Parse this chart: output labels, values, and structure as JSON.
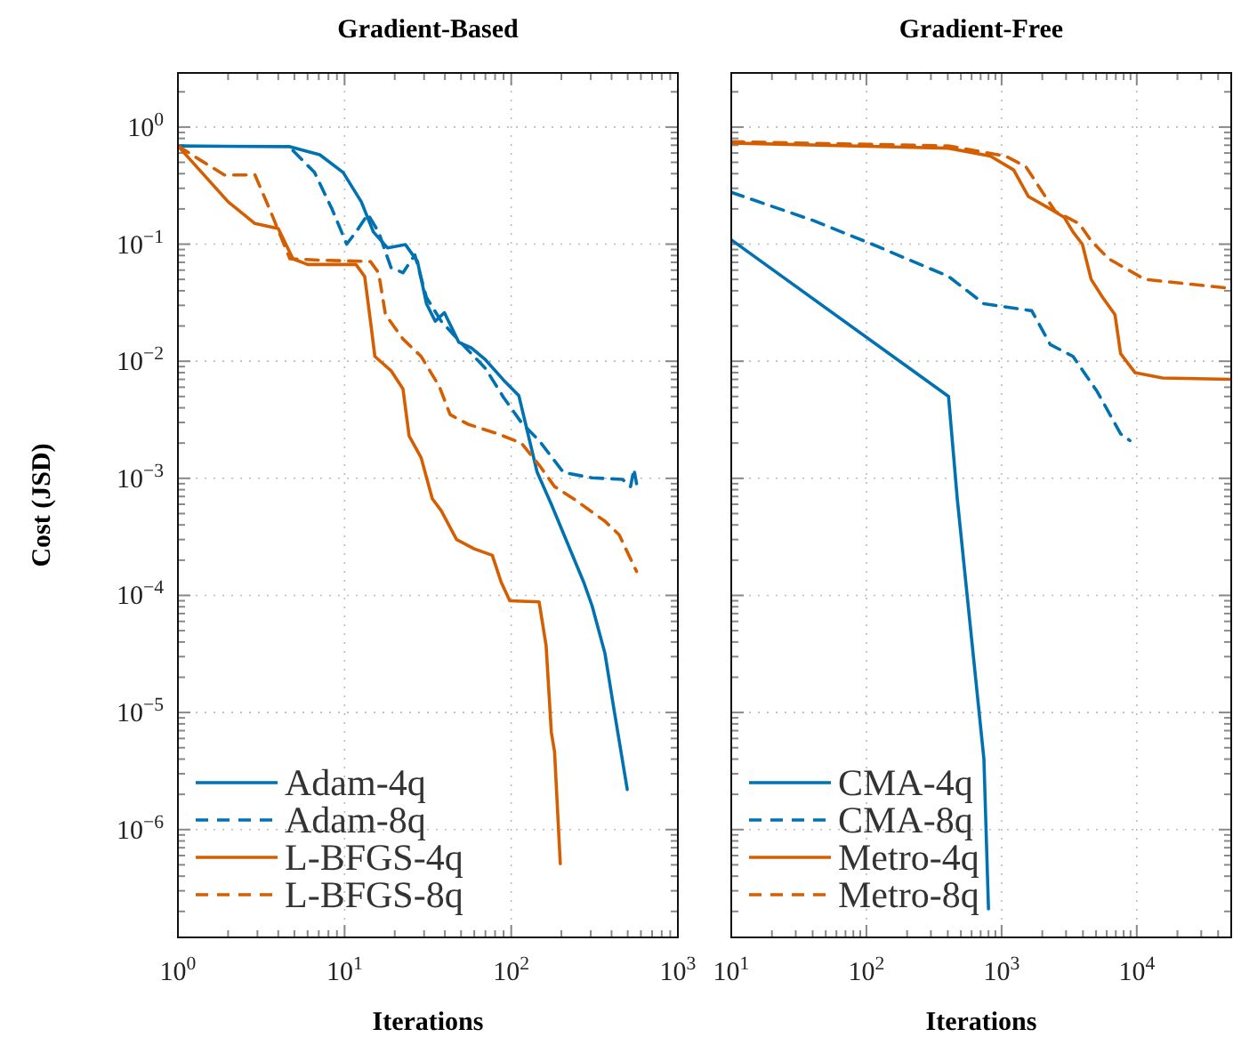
{
  "chart_data": [
    {
      "type": "line",
      "title": "Gradient-Based",
      "xlabel": "Iterations",
      "ylabel": "Cost (JSD)",
      "log": "xy",
      "grid": true,
      "legend": "bottom left",
      "xlim": [
        1,
        1000
      ],
      "ylim": [
        1.2e-07,
        2.9
      ],
      "xticks": [
        {
          "value": 1,
          "label": "10$^{0}$"
        },
        {
          "value": 10,
          "label": "10$^{1}$"
        },
        {
          "value": 100,
          "label": "10$^{2}$"
        },
        {
          "value": 1000,
          "label": "10$^{3}$"
        }
      ],
      "yticks": [
        {
          "value": 1e-06,
          "label": "10$^{−6}$"
        },
        {
          "value": 1e-05,
          "label": "10$^{−5}$"
        },
        {
          "value": 0.0001,
          "label": "10$^{−4}$"
        },
        {
          "value": 0.001,
          "label": "10$^{−3}$"
        },
        {
          "value": 0.01,
          "label": "10$^{−2}$"
        },
        {
          "value": 0.1,
          "label": "10$^{−1}$"
        },
        {
          "value": 1,
          "label": "10$^{0}$"
        }
      ],
      "series": [
        {
          "name": "Adam-4q",
          "color": "#0072b2",
          "line_style": "solid",
          "x": [
            1,
            4.7,
            7.1,
            9.8,
            12.6,
            14.9,
            18.1,
            23.2,
            27.4,
            31,
            35,
            39.7,
            48.5,
            57.6,
            70,
            90,
            111,
            126,
            143,
            174,
            272,
            306,
            365,
            412,
            497
          ],
          "values": [
            0.69,
            0.68,
            0.58,
            0.41,
            0.23,
            0.127,
            0.093,
            0.099,
            0.071,
            0.031,
            0.022,
            0.026,
            0.0145,
            0.013,
            0.0103,
            0.0069,
            0.0051,
            0.0024,
            0.00113,
            0.0006,
            0.00013,
            8.1e-05,
            3.2e-05,
            1.1e-05,
            2.2e-06
          ]
        },
        {
          "name": "Adam-8q",
          "color": "#0072b2",
          "line_style": "dashed",
          "x": [
            4.9,
            6.6,
            8.4,
            10.3,
            11.7,
            13.8,
            16,
            19,
            22.4,
            26.4,
            31,
            38,
            51,
            70,
            90,
            115,
            147,
            206,
            306,
            465,
            520,
            545,
            565
          ],
          "values": [
            0.63,
            0.41,
            0.2,
            0.1,
            0.127,
            0.18,
            0.127,
            0.063,
            0.057,
            0.081,
            0.035,
            0.022,
            0.0139,
            0.0087,
            0.0049,
            0.003,
            0.0021,
            0.00112,
            0.00101,
            0.00098,
            0.00085,
            0.0012,
            0.0009
          ]
        },
        {
          "name": "L-BFGS-4q",
          "color": "#d55e00",
          "line_style": "solid",
          "x": [
            1,
            2,
            2.9,
            4,
            4.9,
            6,
            11.7,
            13.2,
            14.3,
            15.2,
            19,
            22.4,
            24.4,
            28.8,
            33.6,
            38,
            47,
            60,
            77,
            87,
            98,
            147,
            162,
            174,
            182,
            197
          ],
          "values": [
            0.69,
            0.23,
            0.15,
            0.136,
            0.075,
            0.067,
            0.067,
            0.053,
            0.022,
            0.011,
            0.0083,
            0.0058,
            0.0023,
            0.0015,
            0.00067,
            0.00053,
            0.0003,
            0.00025,
            0.00022,
            0.00013,
            9e-05,
            8.8e-05,
            3.7e-05,
            6.8e-06,
            4.6e-06,
            5.1e-07
          ]
        },
        {
          "name": "L-BFGS-8q",
          "color": "#d55e00",
          "line_style": "dashed",
          "x": [
            1,
            1.4,
            1.9,
            2.9,
            3.6,
            4.7,
            7.1,
            14.3,
            16,
            17.6,
            22.4,
            28.8,
            37,
            43,
            55,
            83,
            115,
            147,
            182,
            240,
            365,
            444,
            565
          ],
          "values": [
            0.69,
            0.51,
            0.39,
            0.39,
            0.19,
            0.075,
            0.073,
            0.071,
            0.057,
            0.025,
            0.0155,
            0.011,
            0.0061,
            0.0035,
            0.0029,
            0.0024,
            0.002,
            0.0013,
            0.00085,
            0.00066,
            0.00043,
            0.00033,
            0.00016
          ]
        }
      ]
    },
    {
      "type": "line",
      "title": "Gradient-Free",
      "xlabel": "Iterations",
      "log": "xy",
      "grid": true,
      "legend": "bottom left",
      "tick_labels": "x",
      "xlim": [
        10,
        50000
      ],
      "ylim": [
        1.2e-07,
        2.9
      ],
      "xticks": [
        {
          "value": 10,
          "label": "10$^{1}$"
        },
        {
          "value": 100,
          "label": "10$^{2}$"
        },
        {
          "value": 1000,
          "label": "10$^{3}$"
        },
        {
          "value": 10000,
          "label": "10$^{4}$"
        }
      ],
      "yticks": [
        {
          "value": 1e-06,
          "label": null
        },
        {
          "value": 1e-05,
          "label": null
        },
        {
          "value": 0.0001,
          "label": null
        },
        {
          "value": 0.001,
          "label": null
        },
        {
          "value": 0.01,
          "label": null
        },
        {
          "value": 0.1,
          "label": null
        },
        {
          "value": 1,
          "label": null
        }
      ],
      "series": [
        {
          "name": "CMA-4q",
          "color": "#0072b2",
          "line_style": "solid",
          "x": [
            10,
            405,
            470,
            740,
            800
          ],
          "values": [
            0.109,
            0.005,
            0.00067,
            4e-06,
            2.1e-07
          ]
        },
        {
          "name": "CMA-8q",
          "color": "#0072b2",
          "line_style": "dashed",
          "x": [
            10,
            40,
            110,
            405,
            740,
            1670,
            2290,
            3380,
            5100,
            7600,
            8900
          ],
          "values": [
            0.277,
            0.16,
            0.1,
            0.053,
            0.031,
            0.027,
            0.0139,
            0.011,
            0.0055,
            0.0024,
            0.0021
          ]
        },
        {
          "name": "Metro-4q",
          "color": "#d55e00",
          "line_style": "solid",
          "x": [
            10,
            405,
            826,
            1230,
            1580,
            2290,
            2900,
            3380,
            3960,
            4600,
            5600,
            6900,
            7600,
            9700,
            15500,
            49000
          ],
          "values": [
            0.73,
            0.66,
            0.565,
            0.43,
            0.255,
            0.2,
            0.17,
            0.127,
            0.1,
            0.05,
            0.035,
            0.025,
            0.0116,
            0.008,
            0.0072,
            0.007
          ]
        },
        {
          "name": "Metro-8q",
          "color": "#d55e00",
          "line_style": "dashed",
          "x": [
            10,
            405,
            1070,
            1510,
            2040,
            2500,
            3750,
            4600,
            6200,
            11500,
            49000
          ],
          "values": [
            0.75,
            0.69,
            0.565,
            0.46,
            0.27,
            0.19,
            0.15,
            0.107,
            0.075,
            0.05,
            0.042
          ]
        }
      ]
    }
  ]
}
